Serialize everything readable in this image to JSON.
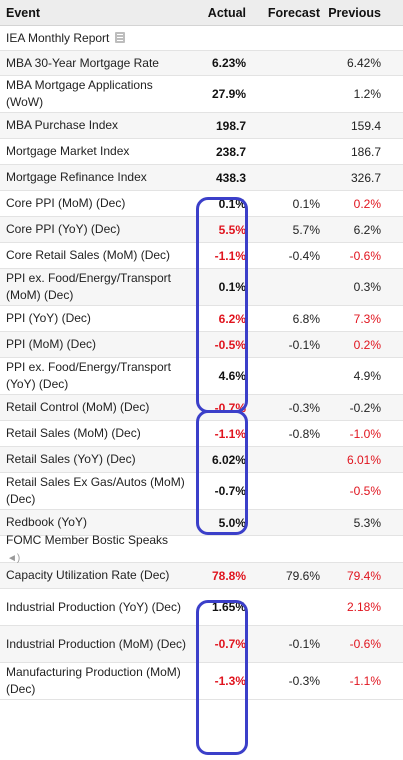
{
  "header": {
    "event": "Event",
    "actual": "Actual",
    "forecast": "Forecast",
    "previous": "Previous"
  },
  "rows": [
    {
      "event": "IEA Monthly Report",
      "actual": "",
      "forecast": "",
      "previous": "",
      "icon": "doc-icon"
    },
    {
      "event": "MBA 30-Year Mortgage Rate",
      "actual": "6.23%",
      "forecast": "",
      "previous": "6.42%"
    },
    {
      "event": "MBA Mortgage Applications (WoW)",
      "actual": "27.9%",
      "forecast": "",
      "previous": "1.2%"
    },
    {
      "event": "MBA Purchase Index",
      "actual": "198.7",
      "forecast": "",
      "previous": "159.4"
    },
    {
      "event": "Mortgage Market Index",
      "actual": "238.7",
      "forecast": "",
      "previous": "186.7"
    },
    {
      "event": "Mortgage Refinance Index",
      "actual": "438.3",
      "forecast": "",
      "previous": "326.7"
    },
    {
      "event": "Core PPI (MoM) (Dec)",
      "actual": "0.1%",
      "forecast": "0.1%",
      "previous": "0.2%",
      "prev_red": true
    },
    {
      "event": "Core PPI (YoY) (Dec)",
      "actual": "5.5%",
      "forecast": "5.7%",
      "previous": "6.2%",
      "act_red": true
    },
    {
      "event": "Core Retail Sales (MoM) (Dec)",
      "actual": "-1.1%",
      "forecast": "-0.4%",
      "previous": "-0.6%",
      "act_red": true,
      "prev_red": true
    },
    {
      "event": "PPI ex. Food/Energy/Transport (MoM) (Dec)",
      "actual": "0.1%",
      "forecast": "",
      "previous": "0.3%"
    },
    {
      "event": "PPI (YoY) (Dec)",
      "actual": "6.2%",
      "forecast": "6.8%",
      "previous": "7.3%",
      "act_red": true,
      "prev_red": true
    },
    {
      "event": "PPI (MoM) (Dec)",
      "actual": "-0.5%",
      "forecast": "-0.1%",
      "previous": "0.2%",
      "act_red": true,
      "prev_red": true
    },
    {
      "event": "PPI ex. Food/Energy/Transport (YoY) (Dec)",
      "actual": "4.6%",
      "forecast": "",
      "previous": "4.9%"
    },
    {
      "event": "Retail Control (MoM) (Dec)",
      "actual": "-0.7%",
      "forecast": "-0.3%",
      "previous": "-0.2%",
      "act_red": true
    },
    {
      "event": "Retail Sales (MoM) (Dec)",
      "actual": "-1.1%",
      "forecast": "-0.8%",
      "previous": "-1.0%",
      "act_red": true,
      "prev_red": true
    },
    {
      "event": "Retail Sales (YoY) (Dec)",
      "actual": "6.02%",
      "forecast": "",
      "previous": "6.01%",
      "prev_red": true
    },
    {
      "event": "Retail Sales Ex Gas/Autos (MoM) (Dec)",
      "actual": "-0.7%",
      "forecast": "",
      "previous": "-0.5%",
      "prev_red": true
    },
    {
      "event": "Redbook (YoY)",
      "actual": "5.0%",
      "forecast": "",
      "previous": "5.3%"
    },
    {
      "event": "FOMC Member Bostic Speaks",
      "actual": "",
      "forecast": "",
      "previous": "",
      "icon": "speaker-icon"
    },
    {
      "event": "Capacity Utilization Rate (Dec)",
      "actual": "78.8%",
      "forecast": "79.6%",
      "previous": "79.4%",
      "act_red": true,
      "prev_red": true
    },
    {
      "event": "Industrial Production (YoY) (Dec)",
      "actual": "1.65%",
      "forecast": "",
      "previous": "2.18%",
      "prev_red": true
    },
    {
      "event": "Industrial Production (MoM) (Dec)",
      "actual": "-0.7%",
      "forecast": "-0.1%",
      "previous": "-0.6%",
      "act_red": true,
      "prev_red": true
    },
    {
      "event": "Manufacturing Production (MoM) (Dec)",
      "actual": "-1.3%",
      "forecast": "-0.3%",
      "previous": "-1.1%",
      "act_red": true,
      "prev_red": true
    }
  ],
  "colors": {
    "negative": "#e0141e",
    "highlight_box": "#3b3fc9",
    "header_bg": "#ededed"
  }
}
